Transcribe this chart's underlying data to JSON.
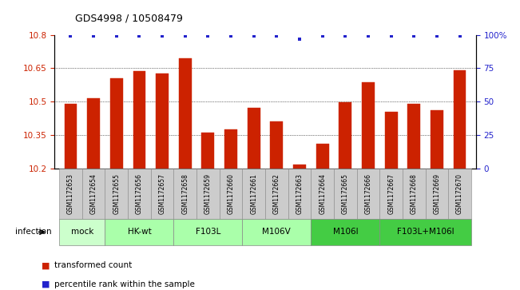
{
  "title": "GDS4998 / 10508479",
  "samples": [
    "GSM1172653",
    "GSM1172654",
    "GSM1172655",
    "GSM1172656",
    "GSM1172657",
    "GSM1172658",
    "GSM1172659",
    "GSM1172660",
    "GSM1172661",
    "GSM1172662",
    "GSM1172663",
    "GSM1172664",
    "GSM1172665",
    "GSM1172666",
    "GSM1172667",
    "GSM1172668",
    "GSM1172669",
    "GSM1172670"
  ],
  "bar_values": [
    10.49,
    10.515,
    10.605,
    10.635,
    10.625,
    10.695,
    10.36,
    10.375,
    10.47,
    10.41,
    10.215,
    10.31,
    10.495,
    10.585,
    10.455,
    10.49,
    10.46,
    10.64
  ],
  "percentile_values": [
    99,
    99,
    99,
    99,
    99,
    99,
    99,
    99,
    99,
    99,
    97,
    99,
    99,
    99,
    99,
    99,
    99,
    99
  ],
  "bar_color": "#cc2200",
  "percentile_color": "#2222cc",
  "ylim_left": [
    10.2,
    10.8
  ],
  "ylim_right": [
    0,
    100
  ],
  "yticks_left": [
    10.2,
    10.35,
    10.5,
    10.65,
    10.8
  ],
  "yticks_right": [
    0,
    25,
    50,
    75,
    100
  ],
  "ytick_labels_right": [
    "0",
    "25",
    "50",
    "75",
    "100%"
  ],
  "groups_def": [
    {
      "label": "mock",
      "indices": [
        0,
        1
      ],
      "light": true
    },
    {
      "label": "HK-wt",
      "indices": [
        2,
        3,
        4
      ],
      "light": false
    },
    {
      "label": "F103L",
      "indices": [
        5,
        6,
        7
      ],
      "light": false
    },
    {
      "label": "M106V",
      "indices": [
        8,
        9,
        10
      ],
      "light": false
    },
    {
      "label": "M106I",
      "indices": [
        11,
        12,
        13
      ],
      "light": true
    },
    {
      "label": "F103L+M106I",
      "indices": [
        14,
        15,
        16,
        17
      ],
      "light": true
    }
  ],
  "color_light_green": "#ccffcc",
  "color_med_green": "#aaffaa",
  "color_dark_green": "#44cc44",
  "color_sample_bg": "#cccccc",
  "infection_label": "infection",
  "legend_items": [
    {
      "label": "transformed count",
      "color": "#cc2200"
    },
    {
      "label": "percentile rank within the sample",
      "color": "#2222cc"
    }
  ]
}
